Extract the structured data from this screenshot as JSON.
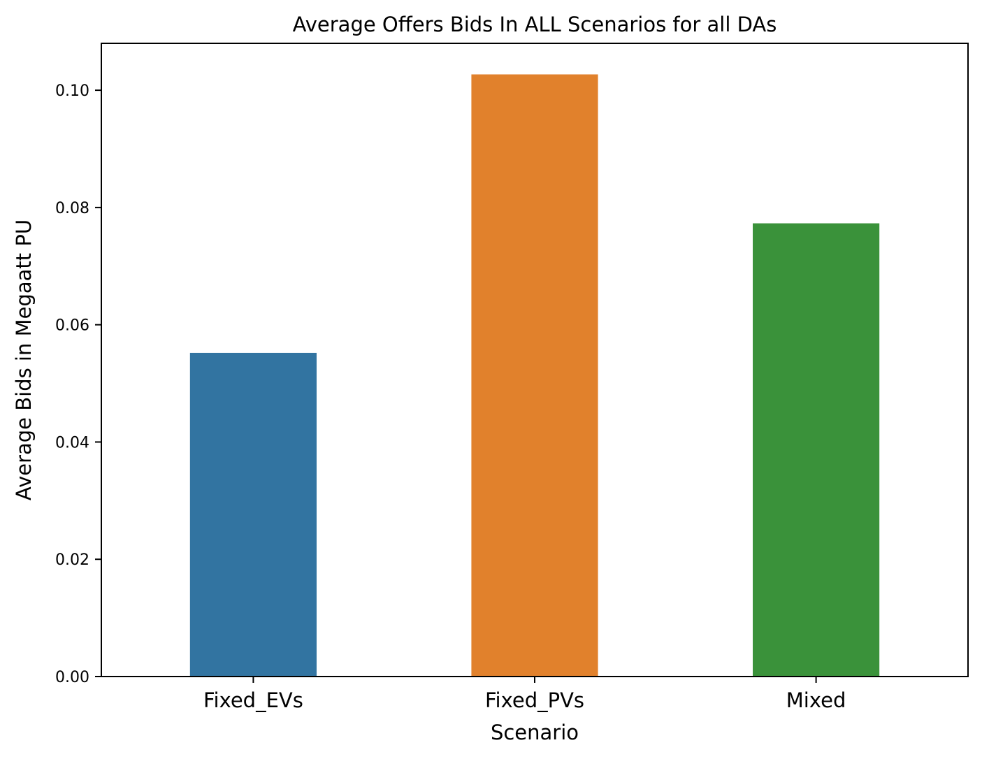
{
  "chart_data": {
    "type": "bar",
    "title": "Average Offers Bids In ALL Scenarios for all DAs",
    "xlabel": "Scenario",
    "ylabel": "Average Bids in Megaatt PU",
    "categories": [
      "Fixed_EVs",
      "Fixed_PVs",
      "Mixed"
    ],
    "values": [
      0.0552,
      0.1027,
      0.0773
    ],
    "colors": [
      "#3274a1",
      "#e1812c",
      "#3a923a"
    ],
    "ylim": [
      0,
      0.108
    ],
    "yticks": [
      0.0,
      0.02,
      0.04,
      0.06,
      0.08,
      0.1
    ],
    "ytick_labels": [
      "0.00",
      "0.02",
      "0.04",
      "0.06",
      "0.08",
      "0.10"
    ],
    "grid": false,
    "legend": "none"
  }
}
